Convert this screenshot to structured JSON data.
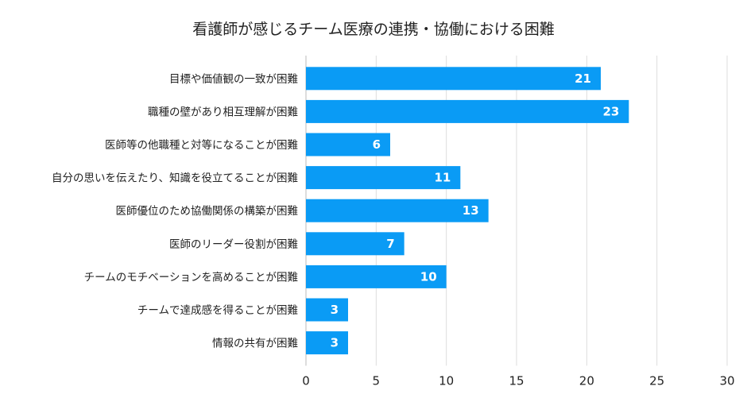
{
  "chart_data": {
    "type": "bar",
    "orientation": "horizontal",
    "title": "看護師が感じるチーム医療の連携・協働における困難",
    "categories": [
      "目標や価値観の一致が困難",
      "職種の壁があり相互理解が困難",
      "医師等の他職種と対等になることが困難",
      "自分の思いを伝えたり、知識を役立てることが困難",
      "医師優位のため協働関係の構築が困難",
      "医師のリーダー役割が困難",
      "チームのモチベーションを高めることが困難",
      "チームで達成感を得ることが困難",
      "情報の共有が困難"
    ],
    "values": [
      21,
      23,
      6,
      11,
      13,
      7,
      10,
      3,
      3
    ],
    "xlim": [
      0,
      30
    ],
    "xticks": [
      0,
      5,
      10,
      15,
      20,
      25,
      30
    ],
    "grid": "vertical",
    "data_labels": "inside-end",
    "bar_color": "#0a9bf5"
  }
}
